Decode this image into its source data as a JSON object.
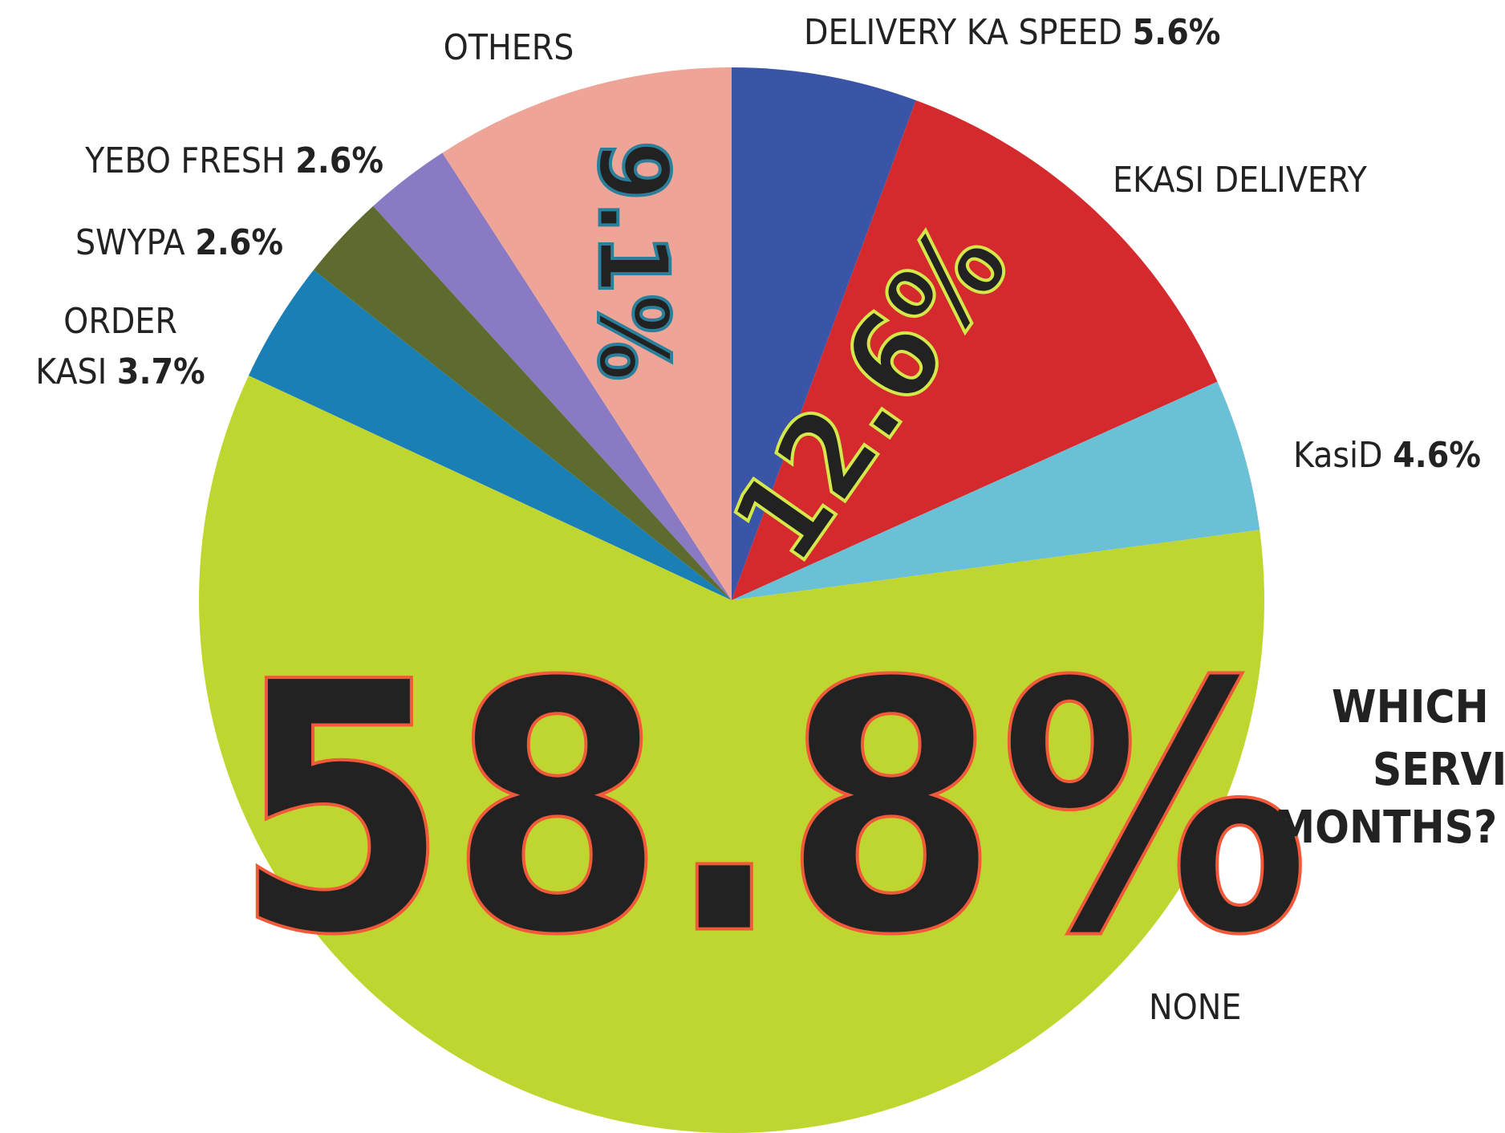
{
  "chart_data": {
    "type": "pie",
    "title": [
      "WHICH",
      "SERVI",
      "MONTHS?"
    ],
    "categories": [
      "DELIVERY KA SPEED",
      "EKASI DELIVERY",
      "KasiD",
      "NONE",
      "ORDER KASI",
      "SWYPA",
      "YEBO FRESH",
      "OTHERS"
    ],
    "values": [
      5.6,
      12.6,
      4.6,
      58.8,
      3.7,
      2.6,
      2.6,
      9.1
    ],
    "value_labels": [
      "5.6%",
      "12.6%",
      "4.6%",
      "58.8%",
      "3.7%",
      "2.6%",
      "2.6%",
      "9.1%"
    ],
    "colors": [
      "#3a55a8",
      "#d42a2e",
      "#6ac0d4",
      "#c0d630",
      "#1a7fb5",
      "#5e6b2e",
      "#8a7ac4",
      "#eea598"
    ]
  }
}
